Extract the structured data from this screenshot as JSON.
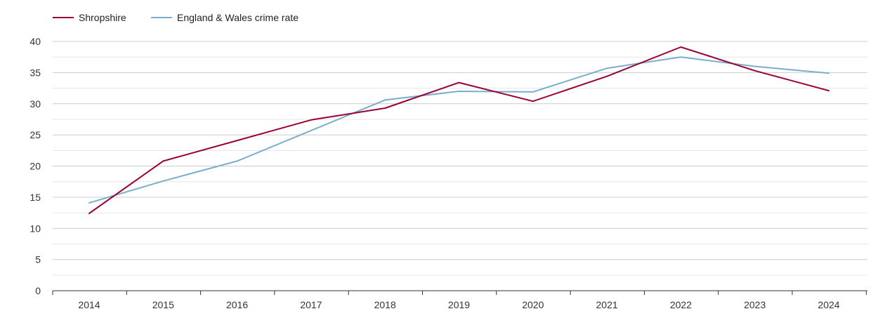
{
  "chart_data": {
    "type": "line",
    "title": "",
    "xlabel": "",
    "ylabel": "",
    "categories": [
      "2014",
      "2015",
      "2016",
      "2017",
      "2018",
      "2019",
      "2020",
      "2021",
      "2022",
      "2023",
      "2024"
    ],
    "ylim": [
      0,
      40
    ],
    "yticks": [
      0,
      5,
      10,
      15,
      20,
      25,
      30,
      35,
      40
    ],
    "grid": true,
    "legend_position": "top-left",
    "series": [
      {
        "name": "Shropshire",
        "color": "#990033",
        "values": [
          12.4,
          20.8,
          24.1,
          27.4,
          29.3,
          33.4,
          30.4,
          34.4,
          39.1,
          35.3,
          32.1
        ]
      },
      {
        "name": "England & Wales crime rate",
        "color": "#7aaecb",
        "values": [
          14.1,
          17.6,
          20.8,
          25.7,
          30.6,
          32.0,
          31.9,
          35.7,
          37.5,
          36.0,
          34.9
        ]
      }
    ]
  }
}
